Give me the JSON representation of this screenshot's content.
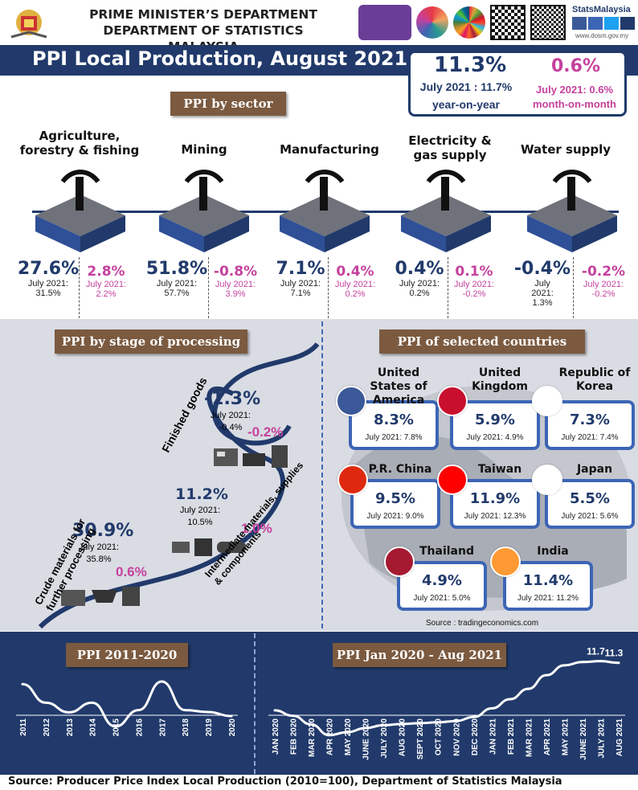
{
  "header": {
    "line1": "PRIME MINISTER’S DEPARTMENT",
    "line2": "DEPARTMENT OF STATISTICS MALAYSIA",
    "brand": "StatsMalaysia",
    "url": "www.dosm.gov.my"
  },
  "title": "PPI Local Production, August 2021",
  "headline": {
    "yoy_value": "11.3%",
    "yoy_prev": "July 2021 : 11.7%",
    "yoy_label": "year-on-year",
    "mom_value": "0.6%",
    "mom_prev": "July 2021: 0.6%",
    "mom_label": "month-on-month"
  },
  "sector": {
    "tag": "PPI by sector",
    "items": [
      {
        "name": "Agriculture, forestry & fishing",
        "yoy": "27.6%",
        "yoy_prev": "July 2021: 31.5%",
        "mom": "2.8%",
        "mom_prev": "July 2021: 2.2%",
        "icon": "palm-tree-icon"
      },
      {
        "name": "Mining",
        "yoy": "51.8%",
        "yoy_prev": "July 2021: 57.7%",
        "mom": "-0.8%",
        "mom_prev": "July 2021: 3.9%",
        "icon": "oil-rig-icon"
      },
      {
        "name": "Manufacturing",
        "yoy": "7.1%",
        "yoy_prev": "July 2021: 7.1%",
        "mom": "0.4%",
        "mom_prev": "July 2021: 0.2%",
        "icon": "factory-icon"
      },
      {
        "name": "Electricity & gas supply",
        "yoy": "0.4%",
        "yoy_prev": "July 2021: 0.2%",
        "mom": "0.1%",
        "mom_prev": "July 2021: -0.2%",
        "icon": "pylon-icon"
      },
      {
        "name": "Water supply",
        "yoy": "-0.4%",
        "yoy_prev": "July 2021: 1.3%",
        "mom": "-0.2%",
        "mom_prev": "July 2021: -0.2%",
        "icon": "faucet-icon"
      }
    ]
  },
  "stage": {
    "tag": "PPI by stage of processing",
    "finished": {
      "label": "Finished goods",
      "yoy": "-1.3%",
      "prev": "July 2021: -0.4%",
      "mom": "-0.2%"
    },
    "intermediate": {
      "label": "Intermediate materials, supplies & components",
      "yoy": "11.2%",
      "prev": "July 2021: 10.5%",
      "mom": "1.0%"
    },
    "crude": {
      "label": "Crude materials for further processing",
      "yoy": "30.9%",
      "prev": "July 2021: 35.8%",
      "mom": "0.6%"
    }
  },
  "countries": {
    "tag": "PPI of selected countries",
    "source": "Source :  tradingeconomics.com",
    "items": [
      {
        "name": "United States of America",
        "value": "8.3%",
        "prev": "July 2021: 7.8%"
      },
      {
        "name": "United Kingdom",
        "value": "5.9%",
        "prev": "July 2021: 4.9%"
      },
      {
        "name": "Republic of Korea",
        "value": "7.3%",
        "prev": "July 2021: 7.4%"
      },
      {
        "name": "P.R. China",
        "value": "9.5%",
        "prev": "July 2021: 9.0%"
      },
      {
        "name": "Taiwan",
        "value": "11.9%",
        "prev": "July 2021: 12.3%"
      },
      {
        "name": "Japan",
        "value": "5.5%",
        "prev": "July 2021: 5.6%"
      },
      {
        "name": "Thailand",
        "value": "4.9%",
        "prev": "July 2021: 5.0%"
      },
      {
        "name": "India",
        "value": "11.4%",
        "prev": "July 2021: 11.2%"
      }
    ]
  },
  "chart_data": [
    {
      "type": "line",
      "title": "PPI 2011-2020",
      "x": [
        "2011",
        "2012",
        "2013",
        "2014",
        "2015",
        "2016",
        "2017",
        "2018",
        "2019",
        "2020"
      ],
      "values": [
        6.0,
        1.0,
        -1.6,
        1.0,
        -5.4,
        -1.0,
        6.7,
        -1.0,
        -1.5,
        -2.6
      ],
      "ylim": [
        -8,
        8
      ]
    },
    {
      "type": "line",
      "title": "PPI Jan 2020 - Aug 2021",
      "x": [
        "JAN 2020",
        "FEB 2020",
        "MAR 2020",
        "APR 2020",
        "MAY 2020",
        "JUNE 2020",
        "JULY 2020",
        "AUG 2020",
        "SEPT 2020",
        "OCT 2020",
        "NOV 2020",
        "DEC 2020",
        "JAN 2021",
        "FEB 2021",
        "MAR 2021",
        "APR 2021",
        "MAY 2021",
        "JUNE 2021",
        "JULY 2021",
        "AUG 2021"
      ],
      "values": [
        -0.2,
        -1.5,
        -3.6,
        -6.2,
        -5.5,
        -4.5,
        -3.8,
        -3.5,
        -3.3,
        -3.1,
        -2.8,
        -1.8,
        0.3,
        2.5,
        5.0,
        8.3,
        10.7,
        11.5,
        11.7,
        11.3
      ],
      "labels": [
        {
          "index": 18,
          "text": "11.7"
        },
        {
          "index": 19,
          "text": "11.3"
        }
      ],
      "ylim": [
        -8,
        13
      ]
    }
  ],
  "footer": "Source: Producer Price Index Local Production (2010=100), Department of Statistics Malaysia"
}
